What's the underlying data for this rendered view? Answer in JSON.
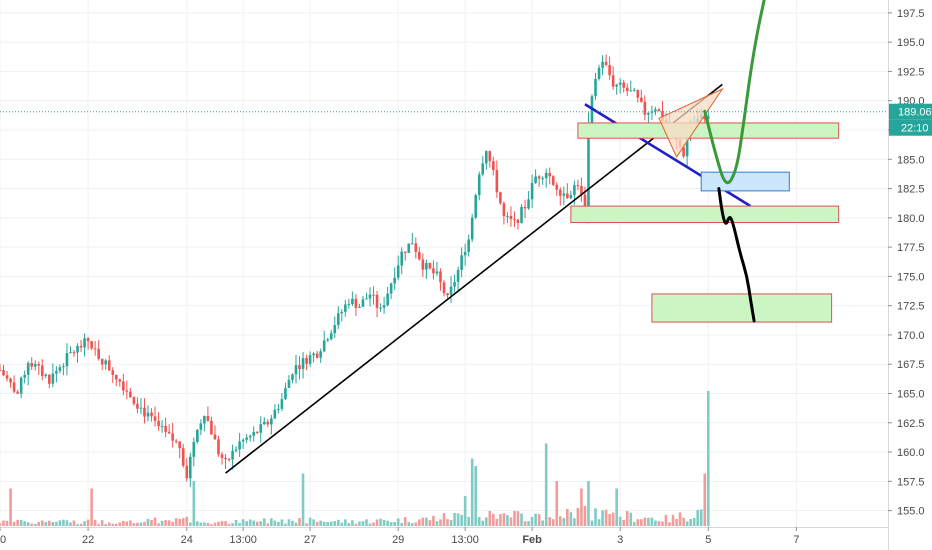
{
  "chart_data": {
    "type": "candlestick",
    "grid": true,
    "y_axis_position": "right",
    "ylim": [
      153.6,
      198.6
    ],
    "xlim": [
      0,
      252
    ],
    "y_ticks": [
      155,
      157.5,
      160,
      162.5,
      165,
      167.5,
      170,
      172.5,
      175,
      177.5,
      180,
      182.5,
      185,
      187.5,
      190,
      192.5,
      195,
      197.5
    ],
    "y_tick_labels": [
      "155.0",
      "157.5",
      "160.0",
      "162.5",
      "165.0",
      "167.5",
      "170.0",
      "172.5",
      "175.0",
      "177.5",
      "180.0",
      "182.5",
      "185.0",
      "187.5",
      "190.0",
      "192.5",
      "195.0",
      "197.5"
    ],
    "x_ticks": [
      {
        "label": "0",
        "bar": 0
      },
      {
        "label": "22",
        "bar": 25
      },
      {
        "label": "24",
        "bar": 53
      },
      {
        "label": "13:00",
        "bar": 69
      },
      {
        "label": "27",
        "bar": 88
      },
      {
        "label": "29",
        "bar": 113
      },
      {
        "label": "13:00",
        "bar": 132
      },
      {
        "label": "Feb",
        "bar": 151,
        "bold": true
      },
      {
        "label": "3",
        "bar": 176
      },
      {
        "label": "5",
        "bar": 201
      },
      {
        "label": "7",
        "bar": 226
      }
    ],
    "current_price": {
      "value": 189.06,
      "label": "189.06",
      "countdown": "22:10"
    },
    "colors": {
      "up": "#26a69a",
      "down": "#ef5350",
      "up_volume": "#80cbc4",
      "down_volume": "#f19c9a",
      "grid": "#eef1f5",
      "current_price": "#26a69a"
    },
    "price_anchors": [
      [
        0,
        167.0
      ],
      [
        5,
        165.0
      ],
      [
        8,
        167.8
      ],
      [
        14,
        166.2
      ],
      [
        20,
        168.4
      ],
      [
        25,
        169.5
      ],
      [
        28,
        168.2
      ],
      [
        33,
        166.5
      ],
      [
        38,
        164.5
      ],
      [
        42,
        163.0
      ],
      [
        47,
        161.5
      ],
      [
        51,
        160.5
      ],
      [
        53,
        158.0
      ],
      [
        55,
        161.0
      ],
      [
        58,
        163.5
      ],
      [
        62,
        160.0
      ],
      [
        64,
        159.0
      ],
      [
        68,
        160.8
      ],
      [
        72,
        161.5
      ],
      [
        76,
        162.5
      ],
      [
        80,
        164.5
      ],
      [
        83,
        167.0
      ],
      [
        86,
        167.8
      ],
      [
        90,
        168.5
      ],
      [
        95,
        171.0
      ],
      [
        99,
        173.0
      ],
      [
        102,
        172.5
      ],
      [
        105,
        173.5
      ],
      [
        108,
        172.0
      ],
      [
        111,
        174.5
      ],
      [
        114,
        177.0
      ],
      [
        117,
        178.0
      ],
      [
        120,
        176.0
      ],
      [
        124,
        175.0
      ],
      [
        127,
        173.0
      ],
      [
        130,
        175.5
      ],
      [
        133,
        178.5
      ],
      [
        136,
        184.0
      ],
      [
        138,
        186.0
      ],
      [
        141,
        182.5
      ],
      [
        143,
        180.0
      ],
      [
        146,
        179.5
      ],
      [
        149,
        181.0
      ],
      [
        152,
        183.5
      ],
      [
        155,
        184.0
      ],
      [
        158,
        182.5
      ],
      [
        161,
        182.0
      ],
      [
        164,
        183.0
      ],
      [
        166,
        180.5
      ],
      [
        167,
        188.0
      ],
      [
        169,
        192.0
      ],
      [
        171,
        193.5
      ],
      [
        174,
        191.5
      ],
      [
        177,
        191.0
      ],
      [
        180,
        190.5
      ],
      [
        183,
        189.0
      ],
      [
        186,
        189.5
      ],
      [
        189,
        188.0
      ],
      [
        192,
        186.5
      ],
      [
        194,
        185.5
      ],
      [
        196,
        188.0
      ],
      [
        199,
        188.5
      ],
      [
        201,
        189.0
      ]
    ],
    "volume_anchors": [
      [
        0,
        0.5
      ],
      [
        20,
        0.6
      ],
      [
        40,
        0.5
      ],
      [
        50,
        1.0
      ],
      [
        60,
        0.4
      ],
      [
        80,
        0.8
      ],
      [
        100,
        0.6
      ],
      [
        120,
        0.9
      ],
      [
        135,
        1.5
      ],
      [
        150,
        1.2
      ],
      [
        165,
        1.8
      ],
      [
        175,
        1.4
      ],
      [
        190,
        0.9
      ],
      [
        201,
        2.2
      ]
    ],
    "volume_spikes": [
      [
        3,
        5
      ],
      [
        26,
        5
      ],
      [
        55,
        6
      ],
      [
        86,
        7
      ],
      [
        132,
        4
      ],
      [
        134,
        9
      ],
      [
        135,
        8
      ],
      [
        155,
        11
      ],
      [
        158,
        6
      ],
      [
        165,
        5
      ],
      [
        167,
        6
      ],
      [
        175,
        5
      ],
      [
        201,
        18
      ],
      [
        200,
        7
      ]
    ],
    "annotations": [
      {
        "type": "line",
        "color": "#000000",
        "width": 1.6,
        "points": [
          [
            64,
            158.2
          ],
          [
            205,
            191.4
          ]
        ]
      },
      {
        "type": "line",
        "color": "#1f20c8",
        "width": 2.6,
        "points": [
          [
            166,
            189.7
          ],
          [
            213,
            181.0
          ]
        ]
      },
      {
        "type": "box",
        "fill": "#ccf5c4",
        "stroke": "#d9534f",
        "x": [
          164,
          238
        ],
        "y": [
          186.8,
          188.1
        ]
      },
      {
        "type": "box",
        "fill": "#ccf5c4",
        "stroke": "#d9534f",
        "x": [
          162,
          238
        ],
        "y": [
          179.6,
          181.0
        ]
      },
      {
        "type": "box",
        "fill": "#cce6fb",
        "stroke": "#2f7fd6",
        "x": [
          199,
          224
        ],
        "y": [
          182.3,
          183.9
        ]
      },
      {
        "type": "box",
        "fill": "#ccf5c4",
        "stroke": "#d9534f",
        "x": [
          185,
          236
        ],
        "y": [
          171.1,
          173.5
        ]
      },
      {
        "type": "triangle",
        "fill": "#f8dcc4",
        "stroke": "#e0612f",
        "points": [
          [
            187,
            188.5
          ],
          [
            205,
            191.0
          ],
          [
            192,
            185.2
          ]
        ]
      },
      {
        "type": "path",
        "color": "#3a9a3a",
        "width": 3,
        "points": [
          [
            200,
            189.1
          ],
          [
            203,
            185.5
          ],
          [
            206,
            182.5
          ],
          [
            209,
            184.0
          ],
          [
            211,
            188.0
          ],
          [
            213,
            192.5
          ],
          [
            215,
            196.0
          ],
          [
            217,
            198.8
          ]
        ]
      },
      {
        "type": "path",
        "color": "#000000",
        "width": 3,
        "points": [
          [
            204,
            182.5
          ],
          [
            205,
            180.3
          ],
          [
            206,
            179.3
          ],
          [
            207,
            180.2
          ],
          [
            208,
            179.6
          ],
          [
            210,
            177.0
          ],
          [
            212,
            175.0
          ],
          [
            213,
            173.0
          ],
          [
            214,
            171.2
          ]
        ]
      }
    ]
  }
}
